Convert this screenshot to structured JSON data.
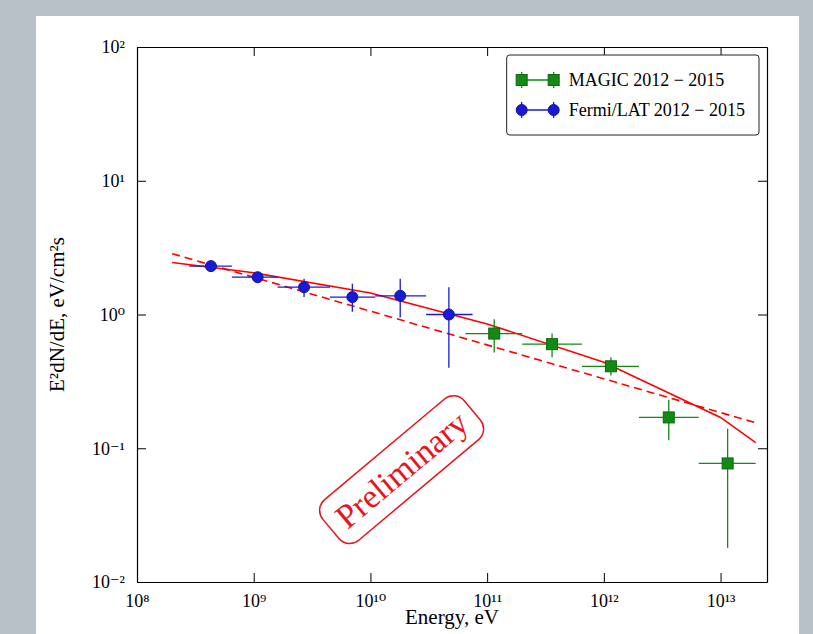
{
  "chart_data": {
    "type": "scatter",
    "x_label": "Energy, eV",
    "y_label": "E²dN/dE, eV/cm²s",
    "annotations": [
      "Preliminary"
    ],
    "log": true,
    "grid": false,
    "legend": "upper right",
    "xlim": [
      100000000,
      25000000000000
    ],
    "ylim": [
      0.01,
      100
    ],
    "xticks": [
      {
        "value": 100000000,
        "label": "10⁸"
      },
      {
        "value": 1000000000,
        "label": "10⁹"
      },
      {
        "value": 10000000000,
        "label": "10¹⁰"
      },
      {
        "value": 100000000000,
        "label": "10¹¹"
      },
      {
        "value": 1000000000000,
        "label": "10¹²"
      },
      {
        "value": 10000000000000,
        "label": "10¹³"
      }
    ],
    "yticks": [
      {
        "value": 0.01,
        "label": "10⁻²"
      },
      {
        "value": 0.1,
        "label": "10⁻¹"
      },
      {
        "value": 1,
        "label": "10⁰"
      },
      {
        "value": 10,
        "label": "10¹"
      },
      {
        "value": 100,
        "label": "10²"
      }
    ],
    "series": [
      {
        "name": "MAGIC 2012 − 2015",
        "color": "#138a13",
        "type": "scatter",
        "marker": "square",
        "x": [
          115000000000,
          360000000000,
          1150000000000,
          3600000000000,
          11500000000000
        ],
        "values": [
          0.72,
          0.6,
          0.41,
          0.17,
          0.077
        ],
        "x_lower": [
          65000000000,
          200000000000,
          650000000000,
          2000000000000,
          6500000000000
        ],
        "x_upper": [
          200000000000,
          650000000000,
          2000000000000,
          6500000000000,
          20000000000000
        ],
        "y_lower": [
          0.52,
          0.48,
          0.35,
          0.115,
          0.018
        ],
        "y_upper": [
          0.92,
          0.72,
          0.48,
          0.23,
          0.14
        ]
      },
      {
        "name": "Fermi/LAT 2012 − 2015",
        "color": "#1a1ad6",
        "type": "scatter",
        "marker": "circle",
        "x": [
          430000000,
          1080000000,
          2700000000,
          7000000000,
          18000000000,
          47000000000
        ],
        "values": [
          2.3,
          1.9,
          1.6,
          1.35,
          1.38,
          1.0
        ],
        "x_lower": [
          280000000,
          650000000,
          1600000000,
          4500000000,
          11000000000,
          30000000000
        ],
        "x_upper": [
          650000000,
          1600000000,
          4500000000,
          11000000000,
          30000000000,
          75000000000
        ],
        "y_lower": [
          2.1,
          1.75,
          1.35,
          1.05,
          0.95,
          0.4
        ],
        "y_upper": [
          2.5,
          2.05,
          1.85,
          1.7,
          1.85,
          1.6
        ]
      },
      {
        "color": "#ff0000",
        "type": "line",
        "line_style": "solid",
        "x": [
          200000000,
          1000000000,
          10000000000,
          100000000000,
          1000000000000,
          10000000000000,
          20000000000000
        ],
        "values": [
          2.45,
          2.05,
          1.45,
          0.85,
          0.44,
          0.17,
          0.11
        ]
      },
      {
        "color": "#ff0000",
        "type": "line",
        "line_style": "dashed",
        "x": [
          200000000,
          20000000000000
        ],
        "values": [
          2.85,
          0.155
        ]
      }
    ]
  }
}
